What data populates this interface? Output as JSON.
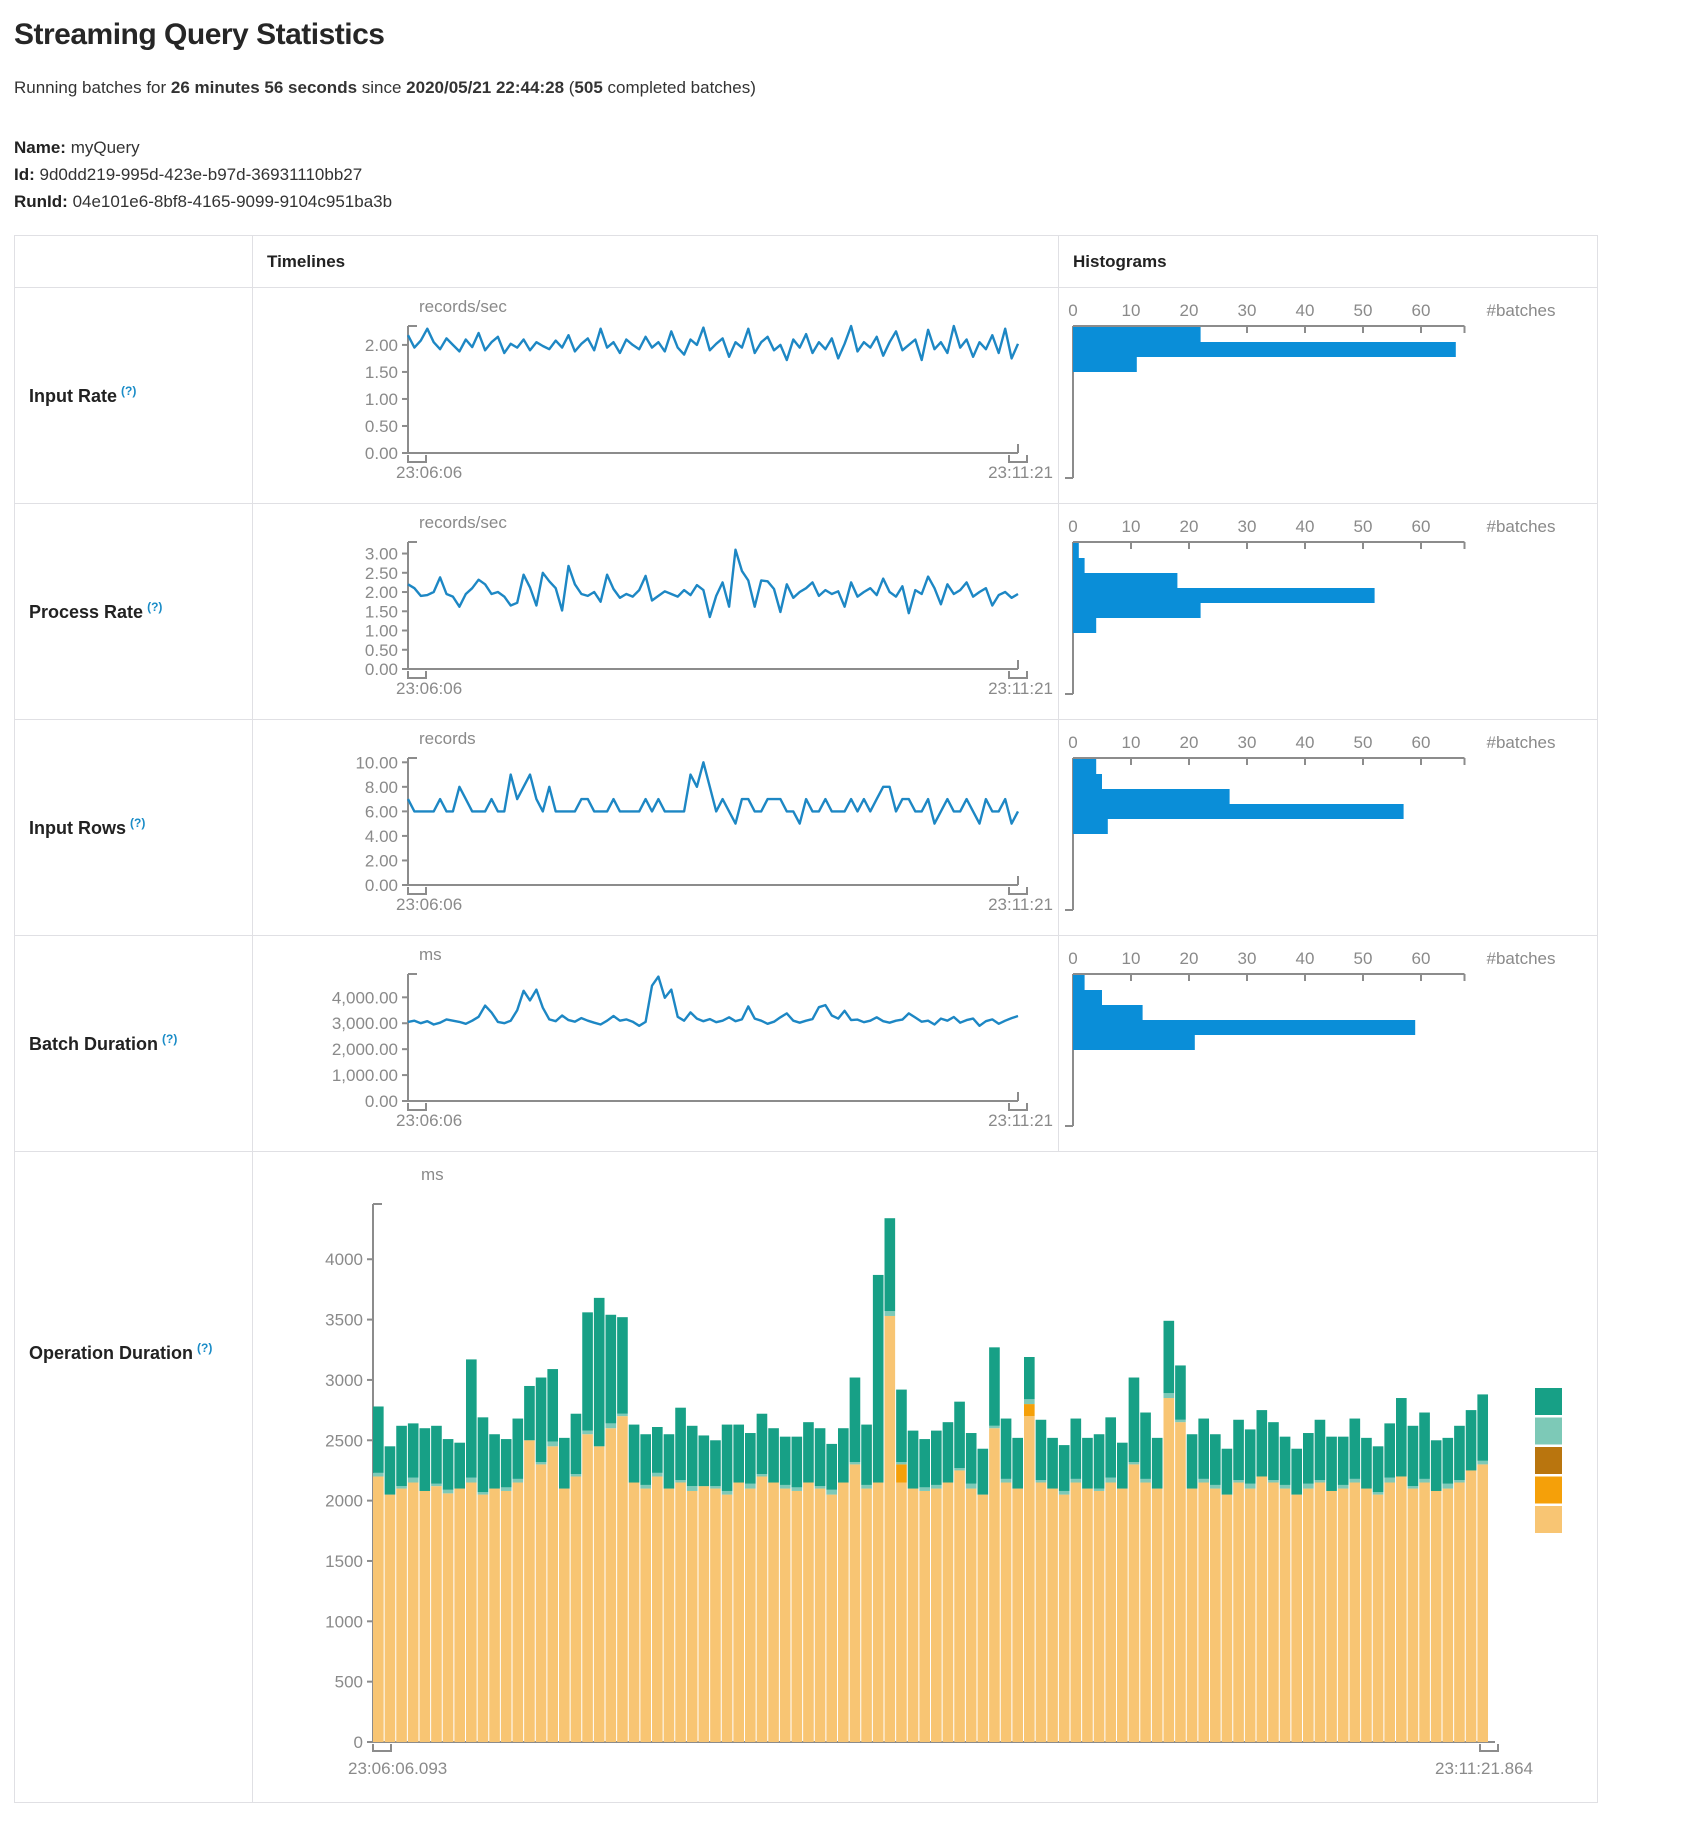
{
  "page": {
    "title": "Streaming Query Statistics",
    "subtitle": {
      "prefix": "Running batches for ",
      "duration": "26 minutes 56 seconds",
      "middle": " since ",
      "start_time": "2020/05/21 22:44:28",
      "open_paren": " (",
      "batches": "505",
      "suffix": " completed batches)"
    },
    "meta": [
      {
        "label": "Name:",
        "value": "myQuery"
      },
      {
        "label": "Id:",
        "value": "9d0dd219-995d-423e-b97d-36931110bb27"
      },
      {
        "label": "RunId:",
        "value": "04e101e6-8bf8-4165-9099-9104c951ba3b"
      }
    ]
  },
  "table": {
    "headers": {
      "timelines": "Timelines",
      "histograms": "Histograms"
    },
    "rows": [
      {
        "label": "Input Rate",
        "help": "(?)"
      },
      {
        "label": "Process Rate",
        "help": "(?)"
      },
      {
        "label": "Input Rows",
        "help": "(?)"
      },
      {
        "label": "Batch Duration",
        "help": "(?)"
      },
      {
        "label": "Operation Duration",
        "help": "(?)"
      }
    ]
  },
  "colors": {
    "timeline_line": "#1d87c4",
    "histogram_bar": "#0a8ed8",
    "axis": "#8c8c8c",
    "tick_text": "#8a8a8a",
    "help_link": "#1a8cc7",
    "table_border": "#e0e0e4",
    "operation_legend_top_to_bottom": [
      "#17a086",
      "#7dc9b7",
      "#b9750e",
      "#f5a009",
      "#f8c573"
    ]
  },
  "chart_data": [
    {
      "id": "input-rate-timeline",
      "type": "line",
      "unit": "records/sec",
      "x_left": "23:06:06",
      "x_right": "23:11:21",
      "ymax": 2.35,
      "yticks": [
        {
          "v": 0,
          "t": "0.00"
        },
        {
          "v": 0.5,
          "t": "0.50"
        },
        {
          "v": 1,
          "t": "1.00"
        },
        {
          "v": 1.5,
          "t": "1.50"
        },
        {
          "v": 2,
          "t": "2.00"
        }
      ],
      "values": [
        2.18,
        1.95,
        2.08,
        2.3,
        2.05,
        1.92,
        2.12,
        2.0,
        1.88,
        2.1,
        1.96,
        2.22,
        1.9,
        2.05,
        2.15,
        1.85,
        2.02,
        1.95,
        2.1,
        1.9,
        2.05,
        1.98,
        1.92,
        2.08,
        1.95,
        2.18,
        1.88,
        2.02,
        2.12,
        1.9,
        2.3,
        1.95,
        2.05,
        1.85,
        2.1,
        2.0,
        1.92,
        2.15,
        1.95,
        2.05,
        1.88,
        2.25,
        1.95,
        1.82,
        2.1,
        2.0,
        2.32,
        1.9,
        2.02,
        2.12,
        1.78,
        2.05,
        1.95,
        2.3,
        1.85,
        2.05,
        2.15,
        1.9,
        2.0,
        1.72,
        2.1,
        1.95,
        2.2,
        1.85,
        2.05,
        1.92,
        2.12,
        1.75,
        2.02,
        2.35,
        1.88,
        2.05,
        1.95,
        2.15,
        1.8,
        2.05,
        2.25,
        1.9,
        2.0,
        2.1,
        1.72,
        2.28,
        1.92,
        2.05,
        1.85,
        2.35,
        1.95,
        2.1,
        1.78,
        2.05,
        1.92,
        2.18,
        1.85,
        2.3,
        1.75,
        2.02
      ]
    },
    {
      "id": "input-rate-histogram",
      "type": "hbar",
      "xlabel": "#batches",
      "xmax": 67.5,
      "xticks": [
        {
          "v": 0,
          "t": "0"
        },
        {
          "v": 10,
          "t": "10"
        },
        {
          "v": 20,
          "t": "20"
        },
        {
          "v": 30,
          "t": "30"
        },
        {
          "v": 40,
          "t": "40"
        },
        {
          "v": 50,
          "t": "50"
        },
        {
          "v": 60,
          "t": "60"
        }
      ],
      "values": [
        22,
        66,
        11
      ]
    },
    {
      "id": "process-rate-timeline",
      "type": "line",
      "unit": "records/sec",
      "x_left": "23:06:06",
      "x_right": "23:11:21",
      "ymax": 3.3,
      "yticks": [
        {
          "v": 0,
          "t": "0.00"
        },
        {
          "v": 0.5,
          "t": "0.50"
        },
        {
          "v": 1,
          "t": "1.00"
        },
        {
          "v": 1.5,
          "t": "1.50"
        },
        {
          "v": 2,
          "t": "2.00"
        },
        {
          "v": 2.5,
          "t": "2.50"
        },
        {
          "v": 3,
          "t": "3.00"
        }
      ],
      "values": [
        2.2,
        2.1,
        1.9,
        1.92,
        2.0,
        2.38,
        1.95,
        1.88,
        1.62,
        1.95,
        2.1,
        2.32,
        2.2,
        1.95,
        2.0,
        1.88,
        1.65,
        1.72,
        2.45,
        2.12,
        1.65,
        2.5,
        2.28,
        2.1,
        1.52,
        2.68,
        2.2,
        1.95,
        1.9,
        2.0,
        1.75,
        2.45,
        2.08,
        1.85,
        1.95,
        1.88,
        2.05,
        2.42,
        1.78,
        1.9,
        2.02,
        1.95,
        1.88,
        2.05,
        1.92,
        2.18,
        2.05,
        1.35,
        1.9,
        2.25,
        1.62,
        3.1,
        2.55,
        2.3,
        1.62,
        2.3,
        2.28,
        2.08,
        1.48,
        2.2,
        1.85,
        2.0,
        2.1,
        2.25,
        1.9,
        2.05,
        1.95,
        2.02,
        1.62,
        2.25,
        1.88,
        2.0,
        2.1,
        1.92,
        2.35,
        2.0,
        1.88,
        2.15,
        1.45,
        2.05,
        1.95,
        2.4,
        2.1,
        1.68,
        2.2,
        1.95,
        2.05,
        2.25,
        1.88,
        2.0,
        2.1,
        1.65,
        1.92,
        2.0,
        1.85,
        1.95
      ]
    },
    {
      "id": "process-rate-histogram",
      "type": "hbar",
      "xlabel": "#batches",
      "xmax": 67.5,
      "xticks": [
        {
          "v": 0,
          "t": "0"
        },
        {
          "v": 10,
          "t": "10"
        },
        {
          "v": 20,
          "t": "20"
        },
        {
          "v": 30,
          "t": "30"
        },
        {
          "v": 40,
          "t": "40"
        },
        {
          "v": 50,
          "t": "50"
        },
        {
          "v": 60,
          "t": "60"
        }
      ],
      "values": [
        1,
        2,
        18,
        52,
        22,
        4
      ]
    },
    {
      "id": "input-rows-timeline",
      "type": "line",
      "unit": "records",
      "x_left": "23:06:06",
      "x_right": "23:11:21",
      "ymax": 10.35,
      "yticks": [
        {
          "v": 0,
          "t": "0.00"
        },
        {
          "v": 2,
          "t": "2.00"
        },
        {
          "v": 4,
          "t": "4.00"
        },
        {
          "v": 6,
          "t": "6.00"
        },
        {
          "v": 8,
          "t": "8.00"
        },
        {
          "v": 10,
          "t": "10.00"
        }
      ],
      "values": [
        7,
        6,
        6,
        6,
        6,
        7,
        6,
        6,
        8,
        7,
        6,
        6,
        6,
        7,
        6,
        6,
        9,
        7,
        8,
        9,
        7,
        6,
        8,
        6,
        6,
        6,
        6,
        7,
        7,
        6,
        6,
        6,
        7,
        6,
        6,
        6,
        6,
        7,
        6,
        7,
        6,
        6,
        6,
        6,
        9,
        8,
        10,
        8,
        6,
        7,
        6,
        5,
        7,
        7,
        6,
        6,
        7,
        7,
        7,
        6,
        6,
        5,
        7,
        6,
        6,
        7,
        6,
        6,
        6,
        7,
        6,
        7,
        6,
        7,
        8,
        8,
        6,
        7,
        7,
        6,
        6,
        7,
        5,
        6,
        7,
        6,
        6,
        7,
        6,
        5,
        7,
        6,
        6,
        7,
        5,
        6
      ]
    },
    {
      "id": "input-rows-histogram",
      "type": "hbar",
      "xlabel": "#batches",
      "xmax": 67.5,
      "xticks": [
        {
          "v": 0,
          "t": "0"
        },
        {
          "v": 10,
          "t": "10"
        },
        {
          "v": 20,
          "t": "20"
        },
        {
          "v": 30,
          "t": "30"
        },
        {
          "v": 40,
          "t": "40"
        },
        {
          "v": 50,
          "t": "50"
        },
        {
          "v": 60,
          "t": "60"
        }
      ],
      "values": [
        4,
        5,
        27,
        57,
        6
      ]
    },
    {
      "id": "batch-duration-timeline",
      "type": "line",
      "unit": "ms",
      "x_left": "23:06:06",
      "x_right": "23:11:21",
      "ymax": 4900,
      "yticks": [
        {
          "v": 0,
          "t": "0.00"
        },
        {
          "v": 1000,
          "t": "1,000.00"
        },
        {
          "v": 2000,
          "t": "2,000.00"
        },
        {
          "v": 3000,
          "t": "3,000.00"
        },
        {
          "v": 4000,
          "t": "4,000.00"
        }
      ],
      "values": [
        3050,
        3100,
        3000,
        3080,
        2950,
        3020,
        3150,
        3100,
        3050,
        2980,
        3100,
        3250,
        3680,
        3420,
        3050,
        3000,
        3100,
        3500,
        4250,
        3880,
        4300,
        3600,
        3150,
        3080,
        3300,
        3120,
        3060,
        3200,
        3100,
        3020,
        2950,
        3100,
        3280,
        3100,
        3150,
        3060,
        2900,
        3050,
        4450,
        4800,
        3980,
        4300,
        3250,
        3100,
        3420,
        3180,
        3080,
        3160,
        3040,
        3100,
        3230,
        3080,
        3150,
        3650,
        3180,
        3100,
        2980,
        3060,
        3230,
        3380,
        3100,
        3020,
        3100,
        3160,
        3620,
        3700,
        3300,
        3180,
        3480,
        3120,
        3140,
        3040,
        3100,
        3230,
        3080,
        3020,
        3100,
        3140,
        3380,
        3220,
        3060,
        3100,
        2950,
        3180,
        3100,
        3240,
        3020,
        3120,
        3180,
        2900,
        3080,
        3150,
        2980,
        3100,
        3200,
        3280
      ]
    },
    {
      "id": "batch-duration-histogram",
      "type": "hbar",
      "xlabel": "#batches",
      "xmax": 67.5,
      "xticks": [
        {
          "v": 0,
          "t": "0"
        },
        {
          "v": 10,
          "t": "10"
        },
        {
          "v": 20,
          "t": "20"
        },
        {
          "v": 30,
          "t": "30"
        },
        {
          "v": 40,
          "t": "40"
        },
        {
          "v": 50,
          "t": "50"
        },
        {
          "v": 60,
          "t": "60"
        }
      ],
      "values": [
        2,
        5,
        12,
        59,
        21
      ]
    },
    {
      "id": "operation-duration-chart",
      "type": "stacked-bar",
      "unit": "ms",
      "x_left": "23:06:06.093",
      "x_right": "23:11:21.864",
      "ymax": 4350,
      "yticks": [
        {
          "v": 0,
          "t": "0"
        },
        {
          "v": 500,
          "t": "500"
        },
        {
          "v": 1000,
          "t": "1000"
        },
        {
          "v": 1500,
          "t": "1500"
        },
        {
          "v": 2000,
          "t": "2000"
        },
        {
          "v": 2500,
          "t": "2500"
        },
        {
          "v": 3000,
          "t": "3000"
        },
        {
          "v": 3500,
          "t": "3500"
        },
        {
          "v": 4000,
          "t": "4000"
        }
      ],
      "series_bottom_to_top": [
        {
          "name": "segment-tan",
          "color": "#f8c573",
          "values": [
            2200,
            2050,
            2100,
            2150,
            2080,
            2120,
            2060,
            2100,
            2150,
            2050,
            2100,
            2080,
            2150,
            2500,
            2300,
            2450,
            2100,
            2200,
            2550,
            2450,
            2600,
            2700,
            2150,
            2100,
            2200,
            2100,
            2150,
            2080,
            2120,
            2100,
            2050,
            2150,
            2100,
            2200,
            2150,
            2100,
            2080,
            2150,
            2100,
            2050,
            2150,
            2300,
            2100,
            2150,
            3530,
            2150,
            2100,
            2080,
            2100,
            2150,
            2250,
            2100,
            2050,
            2600,
            2150,
            2100,
            2700,
            2150,
            2100,
            2050,
            2150,
            2100,
            2080,
            2150,
            2100,
            2300,
            2150,
            2100,
            2850,
            2650,
            2100,
            2150,
            2100,
            2050,
            2150,
            2100,
            2200,
            2150,
            2100,
            2050,
            2100,
            2150,
            2080,
            2100,
            2150,
            2100,
            2050,
            2150,
            2200,
            2100,
            2150,
            2080,
            2100,
            2150,
            2250,
            2300
          ]
        },
        {
          "name": "segment-orange",
          "color": "#f5a009",
          "values": [
            0,
            0,
            0,
            0,
            0,
            0,
            0,
            0,
            0,
            0,
            0,
            0,
            0,
            0,
            0,
            0,
            0,
            0,
            0,
            0,
            0,
            0,
            0,
            0,
            0,
            0,
            0,
            0,
            0,
            0,
            0,
            0,
            0,
            0,
            0,
            0,
            0,
            0,
            0,
            0,
            0,
            0,
            0,
            0,
            0,
            150,
            0,
            0,
            0,
            0,
            0,
            0,
            0,
            0,
            0,
            0,
            100,
            0,
            0,
            0,
            0,
            0,
            0,
            0,
            0,
            0,
            0,
            0,
            0,
            0,
            0,
            0,
            0,
            0,
            0,
            0,
            0,
            0,
            0,
            0,
            0,
            0,
            0,
            0,
            0,
            0,
            0,
            0,
            0,
            0,
            0,
            0,
            0,
            0,
            0,
            0
          ]
        },
        {
          "name": "segment-dark-orange",
          "color": "#b9750e",
          "values": []
        },
        {
          "name": "segment-light-teal",
          "color": "#7dc9b7",
          "values": [
            30,
            0,
            20,
            40,
            0,
            20,
            30,
            0,
            40,
            20,
            0,
            30,
            30,
            0,
            20,
            40,
            0,
            20,
            30,
            0,
            40,
            20,
            0,
            30,
            30,
            0,
            20,
            40,
            0,
            20,
            30,
            0,
            40,
            20,
            0,
            30,
            30,
            0,
            20,
            40,
            0,
            20,
            30,
            0,
            40,
            20,
            0,
            30,
            30,
            0,
            20,
            40,
            0,
            20,
            30,
            0,
            40,
            20,
            0,
            30,
            30,
            0,
            20,
            40,
            0,
            20,
            30,
            0,
            40,
            20,
            0,
            30,
            30,
            0,
            20,
            40,
            0,
            20,
            30,
            0,
            40,
            20,
            0,
            30,
            30,
            0,
            20,
            40,
            0,
            20,
            30,
            0,
            40,
            20,
            0,
            30
          ]
        },
        {
          "name": "segment-teal",
          "color": "#17a086",
          "values": [
            550,
            400,
            500,
            450,
            520,
            480,
            420,
            380,
            980,
            620,
            450,
            400,
            500,
            450,
            700,
            600,
            420,
            500,
            980,
            1230,
            900,
            800,
            480,
            420,
            380,
            450,
            600,
            500,
            420,
            380,
            550,
            480,
            420,
            500,
            450,
            400,
            420,
            500,
            480,
            380,
            450,
            700,
            500,
            1720,
            770,
            600,
            480,
            400,
            450,
            500,
            550,
            420,
            380,
            650,
            500,
            420,
            350,
            500,
            420,
            380,
            500,
            420,
            450,
            500,
            380,
            700,
            550,
            420,
            600,
            450,
            450,
            500,
            420,
            380,
            500,
            450,
            550,
            480,
            400,
            380,
            420,
            500,
            450,
            400,
            500,
            420,
            380,
            450,
            650,
            500,
            550,
            420,
            380,
            450,
            500,
            550
          ]
        }
      ]
    }
  ]
}
